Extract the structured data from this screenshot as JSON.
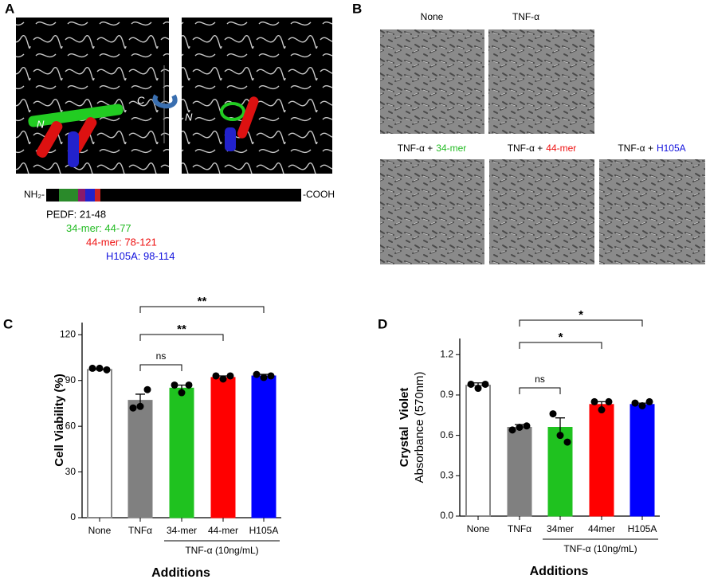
{
  "panel_labels": [
    "A",
    "B",
    "C",
    "D"
  ],
  "panel_a": {
    "n_label": "N",
    "c_label": "C",
    "n_label_right": "N",
    "nh2": "NH₂-",
    "cooh": "-COOH",
    "ranges": [
      {
        "text": "PEDF: 21-48",
        "color": "#000000"
      },
      {
        "text": "34-mer: 44-77",
        "color": "#22bb22"
      },
      {
        "text": "44-mer: 78-121",
        "color": "#ee1111"
      },
      {
        "text": "H105A: 98-114",
        "color": "#1111dd"
      }
    ]
  },
  "panel_b": {
    "top": [
      "None",
      "TNF-α"
    ],
    "bottom": [
      {
        "prefix": "TNF-α +",
        "peptide": "34-mer",
        "color": "#22bb22"
      },
      {
        "prefix": "TNF-α +",
        "peptide": "44-mer",
        "color": "#ee1111"
      },
      {
        "prefix": "TNF-α +",
        "peptide": "H105A",
        "color": "#1111dd"
      }
    ]
  },
  "chart_data": [
    {
      "type": "bar",
      "ylabel": "Cell Viability (%)",
      "xlabel": "Additions",
      "categories": [
        "None",
        "TNFα",
        "34-mer",
        "44-mer",
        "H105A"
      ],
      "colors": [
        "#ffffff",
        "#808080",
        "#1fc21f",
        "#ff0000",
        "#0000ff"
      ],
      "values": [
        97,
        77,
        85,
        92,
        93
      ],
      "errors": [
        0.5,
        4,
        2,
        1,
        1
      ],
      "points": [
        [
          98,
          98,
          97
        ],
        [
          72,
          73,
          84
        ],
        [
          87,
          82,
          87
        ],
        [
          93,
          91,
          93
        ],
        [
          94,
          92,
          93
        ]
      ],
      "ylim": [
        0,
        128
      ],
      "yticks": [
        0,
        30,
        60,
        90,
        120
      ],
      "group": {
        "label": "TNF-α (10ng/mL)",
        "from": 2,
        "to": 4
      },
      "comparisons": [
        {
          "from": 1,
          "to": 2,
          "label": "ns"
        },
        {
          "from": 1,
          "to": 3,
          "label": "**"
        },
        {
          "from": 1,
          "to": 4,
          "label": "**"
        }
      ]
    },
    {
      "type": "bar",
      "ylabel": "Crystal  Violet",
      "ylabel2": "Absorbance (570nm)",
      "xlabel": "Additions",
      "categories": [
        "None",
        "TNFα",
        "34mer",
        "44mer",
        "H105A"
      ],
      "colors": [
        "#ffffff",
        "#808080",
        "#1fc21f",
        "#ff0000",
        "#0000ff"
      ],
      "values": [
        0.97,
        0.66,
        0.66,
        0.83,
        0.83
      ],
      "errors": [
        0.02,
        0.02,
        0.07,
        0.02,
        0.01
      ],
      "points": [
        [
          0.98,
          0.95,
          0.98
        ],
        [
          0.64,
          0.66,
          0.67
        ],
        [
          0.76,
          0.6,
          0.55
        ],
        [
          0.85,
          0.79,
          0.85
        ],
        [
          0.84,
          0.82,
          0.85
        ]
      ],
      "ylim": [
        0,
        1.32
      ],
      "yticks": [
        {
          "value": 0,
          "label": "0.0"
        },
        0.3,
        0.6,
        0.9,
        1.2
      ],
      "group": {
        "label": "TNF-α (10ng/mL)",
        "from": 2,
        "to": 4
      },
      "comparisons": [
        {
          "from": 1,
          "to": 2,
          "label": "ns"
        },
        {
          "from": 1,
          "to": 3,
          "label": "*"
        },
        {
          "from": 1,
          "to": 4,
          "label": "*"
        }
      ]
    }
  ]
}
